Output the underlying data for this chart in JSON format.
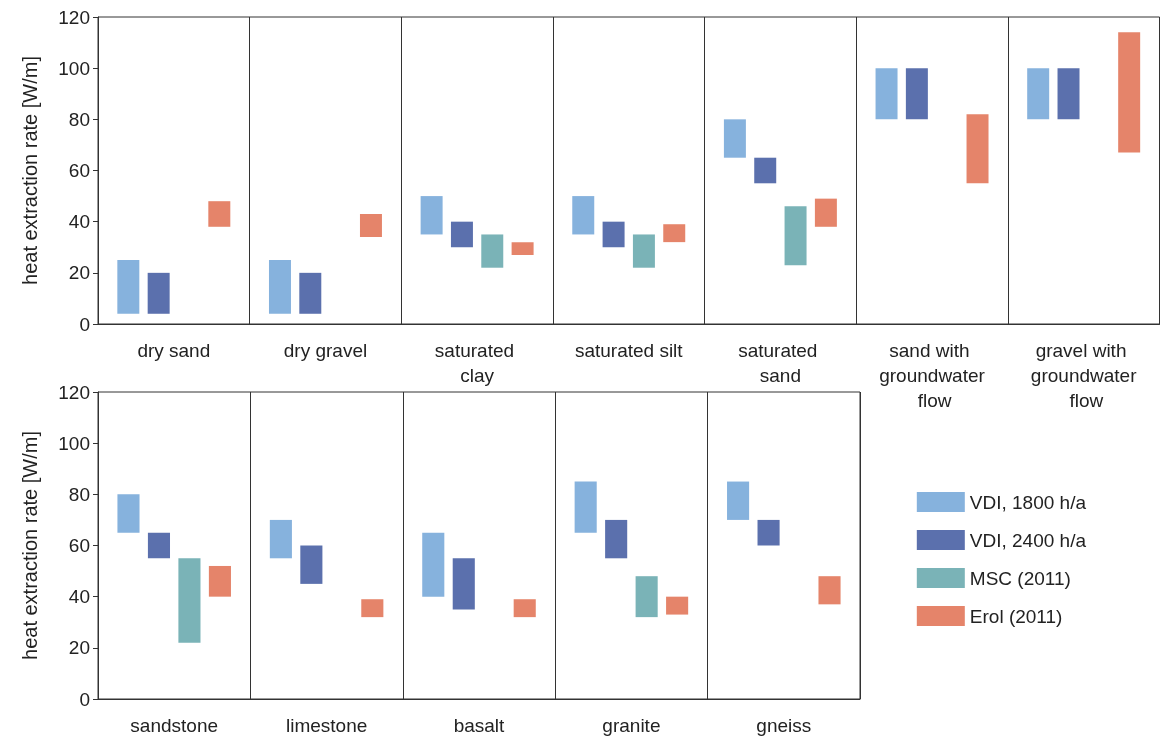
{
  "chart_data": [
    {
      "type": "bar",
      "ylabel": "heat extraction rate [W/m]",
      "categories": [
        "dry sand",
        "dry gravel",
        "saturated clay",
        "saturated silt",
        "saturated sand",
        "sand with groundwater flow",
        "gravel with groundwater flow"
      ],
      "ylim": [
        0,
        120
      ],
      "yticks": [
        0,
        20,
        40,
        60,
        80,
        100,
        120
      ],
      "grid": "x",
      "series": [
        {
          "color": "#86b2dd",
          "base": [
            4,
            4,
            35,
            35,
            65,
            80,
            80
          ],
          "values": [
            21,
            21,
            15,
            15,
            15,
            20,
            20
          ]
        },
        {
          "color": "#5b70ad",
          "base": [
            4,
            4,
            30,
            30,
            55,
            80,
            80
          ],
          "values": [
            16,
            16,
            10,
            10,
            10,
            20,
            20
          ]
        },
        {
          "color": "#7ab3b7",
          "base": [
            null,
            null,
            22,
            22,
            23,
            null,
            null
          ],
          "values": [
            null,
            null,
            13,
            13,
            23,
            null,
            null
          ]
        },
        {
          "color": "#e5846a",
          "base": [
            38,
            34,
            27,
            32,
            38,
            55,
            67
          ],
          "values": [
            10,
            9,
            5,
            7,
            11,
            27,
            47
          ]
        }
      ]
    },
    {
      "type": "bar",
      "ylabel": "heat extraction rate [W/m]",
      "categories": [
        "sandstone",
        "limestone",
        "basalt",
        "granite",
        "gneiss"
      ],
      "ylim": [
        0,
        120
      ],
      "yticks": [
        0,
        20,
        40,
        60,
        80,
        100,
        120
      ],
      "grid": "x",
      "legend": "right",
      "series": [
        {
          "name": "VDI, 1800 h/a",
          "color": "#86b2dd",
          "base": [
            65,
            55,
            40,
            65,
            70
          ],
          "values": [
            15,
            15,
            25,
            20,
            15
          ]
        },
        {
          "name": "VDI, 2400 h/a",
          "color": "#5b70ad",
          "base": [
            55,
            45,
            35,
            55,
            60
          ],
          "values": [
            10,
            15,
            20,
            15,
            10
          ]
        },
        {
          "name": "MSC (2011)",
          "color": "#7ab3b7",
          "base": [
            22,
            null,
            null,
            32,
            null
          ],
          "values": [
            33,
            null,
            null,
            16,
            null
          ]
        },
        {
          "name": "Erol (2011)",
          "color": "#e5846a",
          "base": [
            40,
            32,
            32,
            33,
            37
          ],
          "values": [
            12,
            7,
            7,
            7,
            11
          ]
        }
      ]
    }
  ]
}
